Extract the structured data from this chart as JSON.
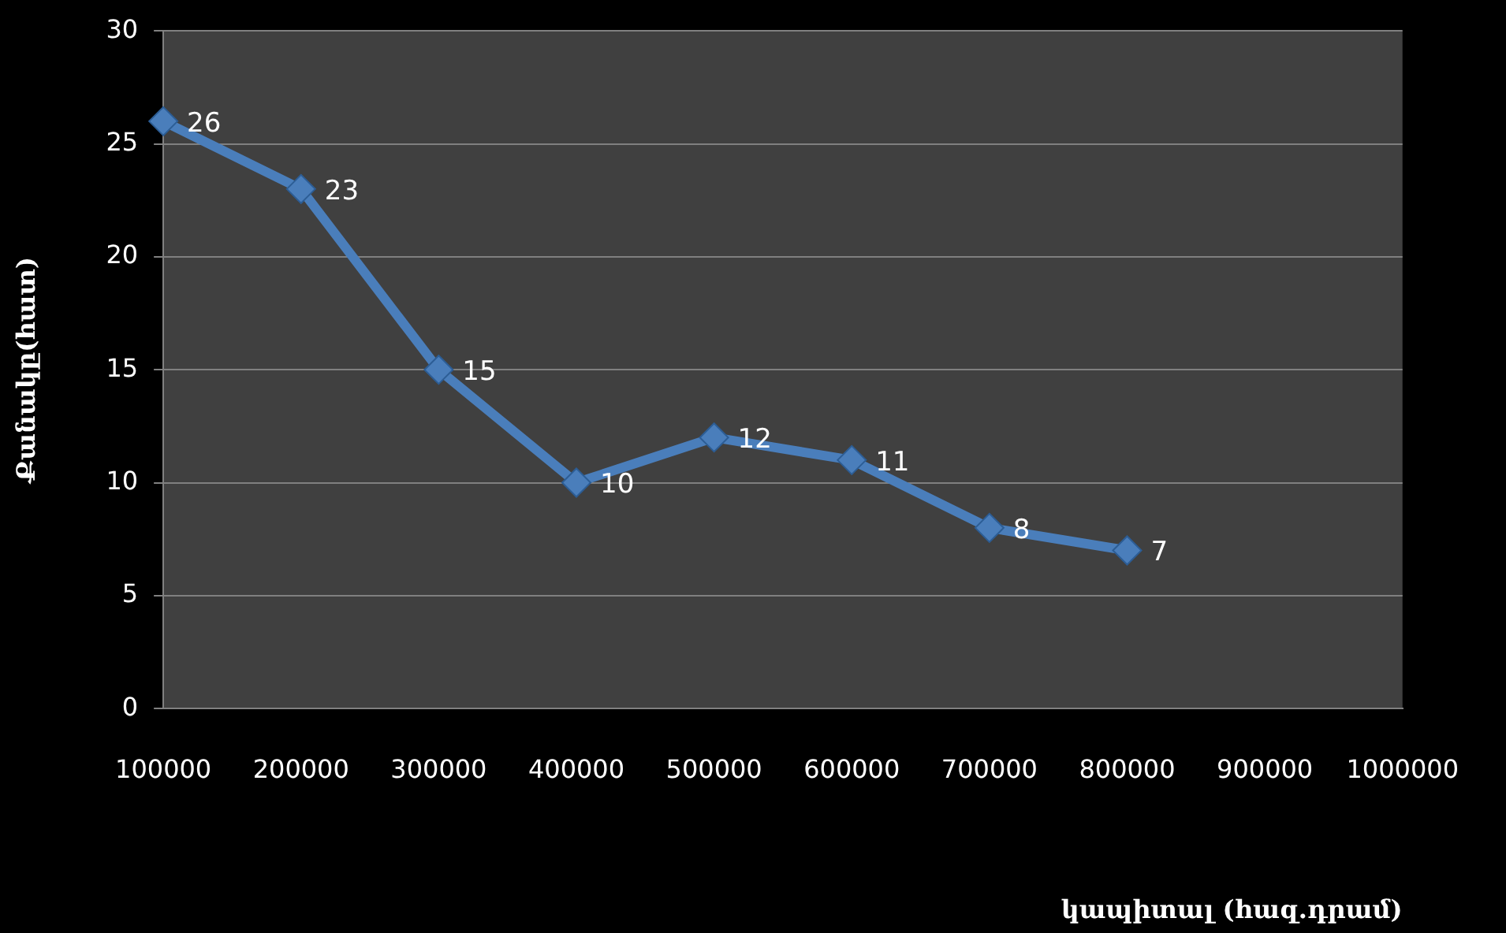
{
  "chart_data": {
    "type": "line",
    "xlabel": "կապիտալ (հազ.դրամ)",
    "ylabel": "Քանակը(հատ)",
    "categories": [
      "100000",
      "200000",
      "300000",
      "400000",
      "500000",
      "600000",
      "700000",
      "800000",
      "900000",
      "1000000"
    ],
    "series": [
      {
        "color": "#4a7ebb",
        "values": [
          26,
          23,
          15,
          10,
          12,
          11,
          8,
          7,
          null,
          null
        ]
      }
    ],
    "ylim": [
      0,
      30
    ],
    "yticks": [
      0,
      5,
      10,
      15,
      20,
      25,
      30
    ],
    "grid": "y",
    "legend": false,
    "marker": "diamond",
    "line_style": "solid",
    "data_labels": true
  }
}
